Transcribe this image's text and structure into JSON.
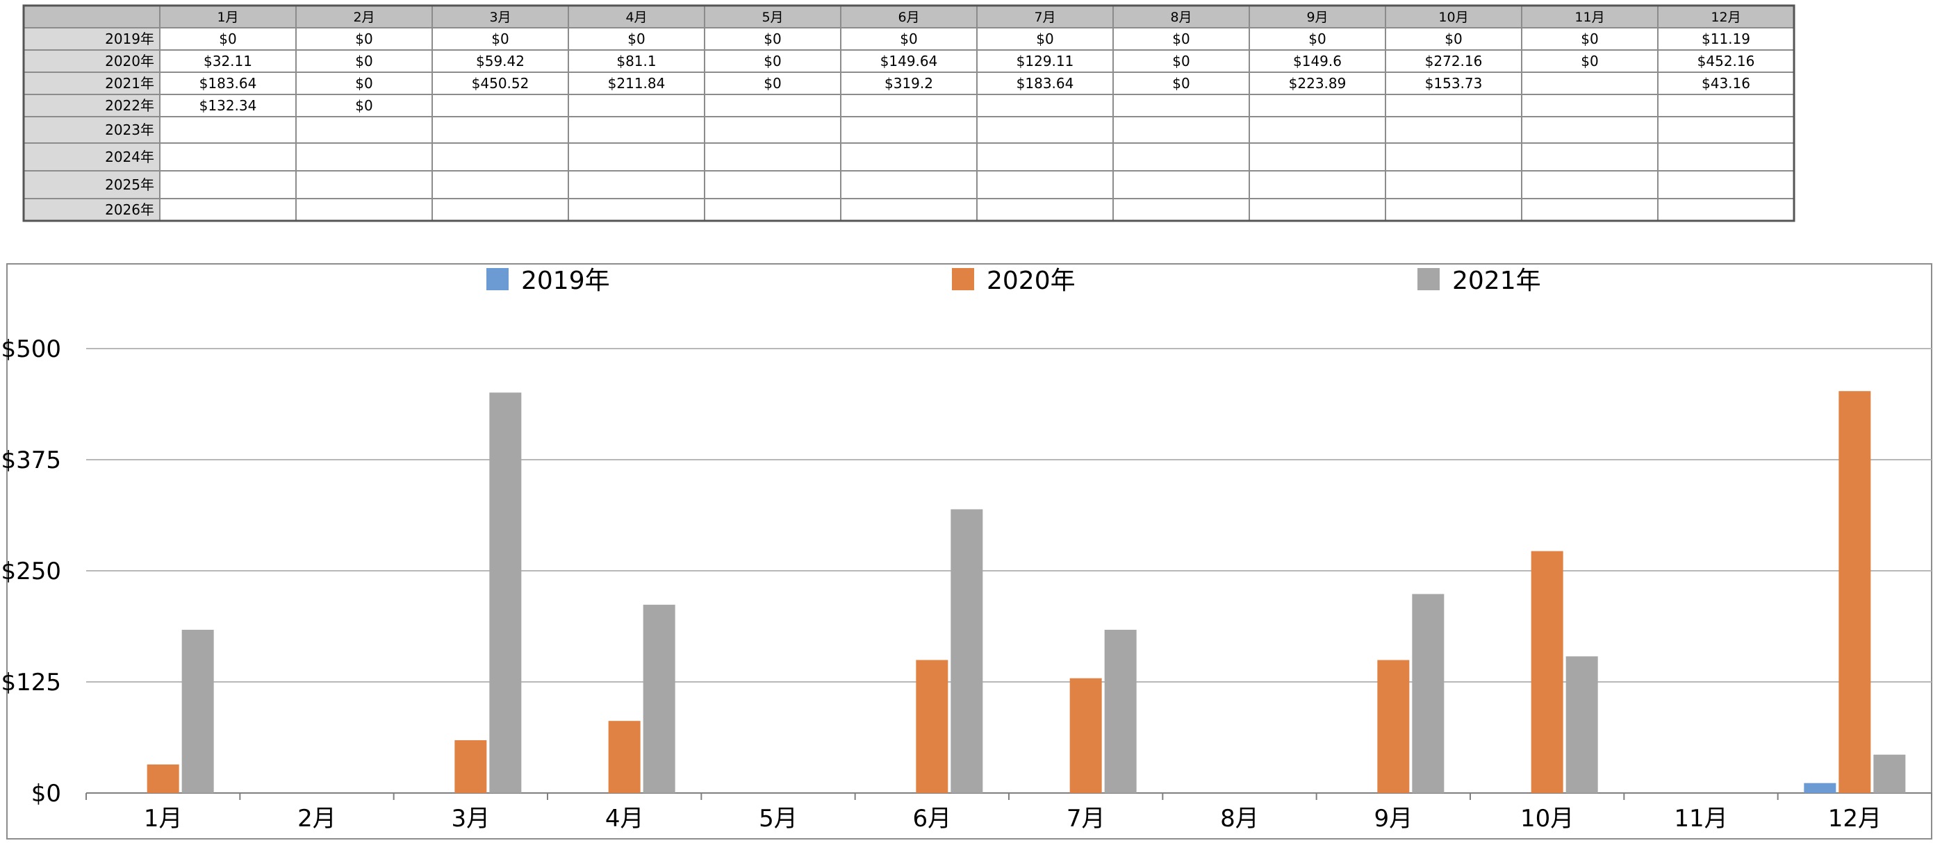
{
  "table": {
    "columns": [
      "1月",
      "2月",
      "3月",
      "4月",
      "5月",
      "6月",
      "7月",
      "8月",
      "9月",
      "10月",
      "11月",
      "12月"
    ],
    "rows": [
      {
        "label": "2019年",
        "cells": [
          "$0",
          "$0",
          "$0",
          "$0",
          "$0",
          "$0",
          "$0",
          "$0",
          "$0",
          "$0",
          "$0",
          "$11.19"
        ]
      },
      {
        "label": "2020年",
        "cells": [
          "$32.11",
          "$0",
          "$59.42",
          "$81.1",
          "$0",
          "$149.64",
          "$129.11",
          "$0",
          "$149.6",
          "$272.16",
          "$0",
          "$452.16"
        ]
      },
      {
        "label": "2021年",
        "cells": [
          "$183.64",
          "$0",
          "$450.52",
          "$211.84",
          "$0",
          "$319.2",
          "$183.64",
          "$0",
          "$223.89",
          "$153.73",
          "",
          "$43.16"
        ]
      },
      {
        "label": "2022年",
        "cells": [
          "$132.34",
          "$0",
          "",
          "",
          "",
          "",
          "",
          "",
          "",
          "",
          "",
          ""
        ]
      },
      {
        "label": "2023年",
        "cells": [
          "",
          "",
          "",
          "",
          "",
          "",
          "",
          "",
          "",
          "",
          "",
          ""
        ]
      },
      {
        "label": "2024年",
        "cells": [
          "",
          "",
          "",
          "",
          "",
          "",
          "",
          "",
          "",
          "",
          "",
          ""
        ]
      },
      {
        "label": "2025年",
        "cells": [
          "",
          "",
          "",
          "",
          "",
          "",
          "",
          "",
          "",
          "",
          "",
          ""
        ]
      },
      {
        "label": "2026年",
        "cells": [
          "",
          "",
          "",
          "",
          "",
          "",
          "",
          "",
          "",
          "",
          "",
          ""
        ]
      }
    ]
  },
  "chart_data": {
    "type": "bar",
    "title": "",
    "xlabel": "",
    "ylabel": "",
    "categories": [
      "1月",
      "2月",
      "3月",
      "4月",
      "5月",
      "6月",
      "7月",
      "8月",
      "9月",
      "10月",
      "11月",
      "12月"
    ],
    "series": [
      {
        "name": "2019年",
        "color": "#6b9bd2",
        "values": [
          0,
          0,
          0,
          0,
          0,
          0,
          0,
          0,
          0,
          0,
          0,
          11.19
        ]
      },
      {
        "name": "2020年",
        "color": "#e08244",
        "values": [
          32.11,
          0,
          59.42,
          81.1,
          0,
          149.64,
          129.11,
          0,
          149.6,
          272.16,
          0,
          452.16
        ]
      },
      {
        "name": "2021年",
        "color": "#a6a6a6",
        "values": [
          183.64,
          0,
          450.52,
          211.84,
          0,
          319.2,
          183.64,
          0,
          223.89,
          153.73,
          0,
          43.16
        ]
      }
    ],
    "ylim": [
      0,
      500
    ],
    "yticks": [
      0,
      125,
      250,
      375,
      500
    ],
    "ytick_labels": [
      "$0",
      "$125",
      "$250",
      "$375",
      "$500"
    ],
    "grid": true,
    "legend": "top"
  },
  "colors": {
    "header_fill": "#c0c0c0",
    "row_label_fill": "#d9d9d9",
    "grid_line": "#8c8c8c",
    "border": "#555555"
  }
}
